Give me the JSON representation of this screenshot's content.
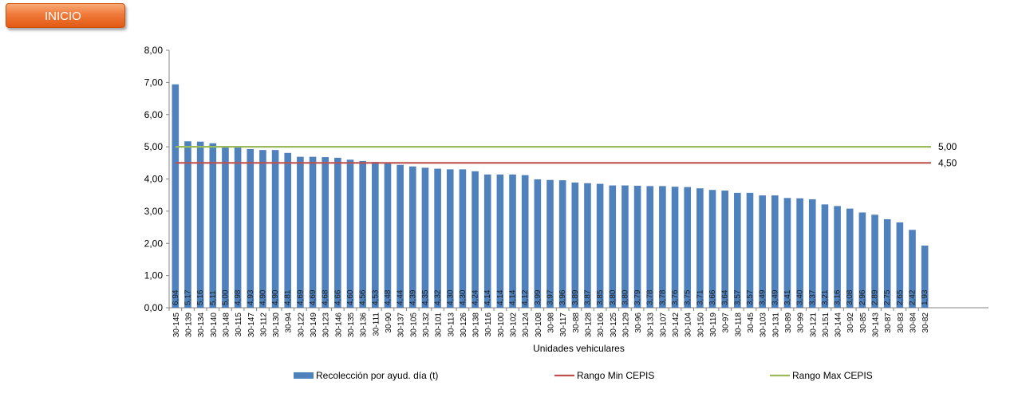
{
  "nav": {
    "inicio_label": "INICIO"
  },
  "chart_data": {
    "type": "bar",
    "title": "",
    "xlabel": "Unidades vehiculares",
    "ylabel": "",
    "ylim": [
      0,
      8
    ],
    "y_ticks": [
      "0,00",
      "1,00",
      "2,00",
      "3,00",
      "4,00",
      "5,00",
      "6,00",
      "7,00",
      "8,00"
    ],
    "grid": false,
    "legend_position": "bottom",
    "categories": [
      "30-145",
      "30-139",
      "30-134",
      "30-140",
      "30-148",
      "30-115",
      "30-147",
      "30-112",
      "30-130",
      "30-94",
      "30-122",
      "30-149",
      "30-123",
      "30-146",
      "30-135",
      "30-136",
      "30-111",
      "30-90",
      "30-137",
      "30-105",
      "30-132",
      "30-101",
      "30-113",
      "30-126",
      "30-138",
      "30-116",
      "30-100",
      "30-102",
      "30-124",
      "30-108",
      "30-98",
      "30-117",
      "30-88",
      "30-128",
      "30-106",
      "30-125",
      "30-129",
      "30-96",
      "30-133",
      "30-107",
      "30-142",
      "30-104",
      "30-150",
      "30-119",
      "30-97",
      "30-118",
      "30-45",
      "30-103",
      "30-131",
      "30-89",
      "30-99",
      "30-121",
      "30-151",
      "30-144",
      "30-92",
      "30-85",
      "30-143",
      "30-87",
      "30-83",
      "30-84",
      "30-82"
    ],
    "series": [
      {
        "name": "Recolección por ayud. día (t)",
        "type": "bar",
        "color": "#4f81bd",
        "values": [
          6.94,
          5.17,
          5.16,
          5.11,
          5.0,
          4.98,
          4.93,
          4.9,
          4.9,
          4.81,
          4.69,
          4.69,
          4.68,
          4.66,
          4.6,
          4.56,
          4.53,
          4.48,
          4.44,
          4.39,
          4.35,
          4.32,
          4.3,
          4.3,
          4.24,
          4.14,
          4.14,
          4.14,
          4.12,
          3.99,
          3.97,
          3.96,
          3.89,
          3.87,
          3.85,
          3.8,
          3.8,
          3.79,
          3.78,
          3.78,
          3.76,
          3.75,
          3.71,
          3.66,
          3.64,
          3.57,
          3.57,
          3.49,
          3.49,
          3.41,
          3.4,
          3.37,
          3.21,
          3.16,
          3.08,
          2.96,
          2.89,
          2.75,
          2.65,
          2.42,
          1.93
        ],
        "data_labels": [
          "6,94",
          "5,17",
          "5,16",
          "5,11",
          "5,00",
          "4,98",
          "4,93",
          "4,90",
          "4,90",
          "4,81",
          "4,69",
          "4,69",
          "4,68",
          "4,66",
          "4,60",
          "4,56",
          "4,53",
          "4,48",
          "4,44",
          "4,39",
          "4,35",
          "4,32",
          "4,30",
          "4,30",
          "4,24",
          "4,14",
          "4,14",
          "4,14",
          "4,12",
          "3,99",
          "3,97",
          "3,96",
          "3,89",
          "3,87",
          "3,85",
          "3,80",
          "3,80",
          "3,79",
          "3,78",
          "3,78",
          "3,76",
          "3,75",
          "3,71",
          "3,66",
          "3,64",
          "3,57",
          "3,57",
          "3,49",
          "3,49",
          "3,41",
          "3,40",
          "3,37",
          "3,21",
          "3,16",
          "3,08",
          "2,96",
          "2,89",
          "2,75",
          "2,65",
          "2,42",
          "1,93"
        ]
      },
      {
        "name": "Rango Min CEPIS",
        "type": "hline",
        "value": 4.5,
        "label": "4,50",
        "color": "#c0504d"
      },
      {
        "name": "Rango Max CEPIS",
        "type": "hline",
        "value": 5.0,
        "label": "5,00",
        "color": "#9bbb59"
      }
    ]
  }
}
